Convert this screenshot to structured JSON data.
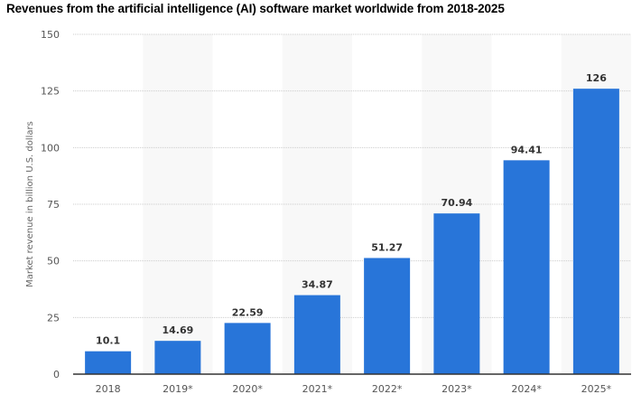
{
  "chart_data": {
    "type": "bar",
    "title": "Revenues from the artificial intelligence (AI) software market worldwide from 2018-2025",
    "xlabel": "",
    "ylabel": "Market revenue in billion U.S. dollars",
    "categories": [
      "2018",
      "2019*",
      "2020*",
      "2021*",
      "2022*",
      "2023*",
      "2024*",
      "2025*"
    ],
    "values": [
      10.1,
      14.69,
      22.59,
      34.87,
      51.27,
      70.94,
      94.41,
      126
    ],
    "value_labels": [
      "10.1",
      "14.69",
      "22.59",
      "34.87",
      "51.27",
      "70.94",
      "94.41",
      "126"
    ],
    "ylim": [
      0,
      150
    ],
    "yticks": [
      0,
      25,
      50,
      75,
      100,
      125,
      150
    ],
    "grid": true,
    "bar_color": "#2875d9",
    "band_color": "#f8f8f8"
  }
}
